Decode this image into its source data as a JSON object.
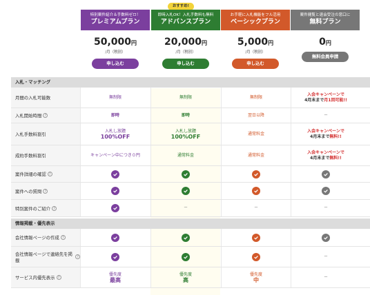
{
  "colors": {
    "premium": "#7b3f9e",
    "advance": "#2e7d32",
    "basic": "#d2592a",
    "free": "#777777",
    "highlight_badge": "#f2d33a"
  },
  "badge": "おすすめ!",
  "plans": [
    {
      "tag": "特別案件紹介＆手数料ゼロ！",
      "name": "プレミアムプラン",
      "amount": "50,000",
      "yen": "円",
      "per": "/月（税別）",
      "button": "申し込む"
    },
    {
      "tag": "即時入札OK！入札手数料も無料",
      "name": "アドバンスプラン",
      "amount": "20,000",
      "yen": "円",
      "per": "/月（税別）",
      "button": "申し込む"
    },
    {
      "tag": "お手軽に入札機能をフル活用",
      "name": "ベーシックプラン",
      "amount": "5,000",
      "yen": "円",
      "per": "/月（税別）",
      "button": "申し込む"
    },
    {
      "tag": "案件閲覧と退会受注の窓口に",
      "name": "無料プラン",
      "amount": "0",
      "yen": "円",
      "per": "",
      "button": "無料会員申請"
    }
  ],
  "sections": {
    "bidding": "入札・マッチング",
    "info": "情報掲載・優先表示"
  },
  "rows": {
    "monthly_bids": {
      "label": "月間の入札可能数",
      "c1": "無制限",
      "c2": "無制限",
      "c3": "無制限",
      "c4a": "入会キャンペーンで",
      "c4b": "4月末まで",
      "c4c": "月1回可能!!"
    },
    "bid_start": {
      "label": "入札開始時間",
      "c1": "即時",
      "c2": "即時",
      "c3": "翌日以降",
      "c4": "－"
    },
    "fee_discount": {
      "label": "入札手数料割引",
      "c1a": "入札し放題",
      "c1b": "100%OFF",
      "c2a": "入札し放題",
      "c2b": "100%OFF",
      "c3": "通常料金",
      "c4a": "入会キャンペーンで",
      "c4b": "4月末まで",
      "c4c": "無料!!"
    },
    "contract_fee": {
      "label": "成約手数料割引",
      "c1": "キャンペーン中につき０円",
      "c2": "通常料金",
      "c3": "通常料金",
      "c4a": "入会キャンペーンで",
      "c4b": "4月末まで",
      "c4c": "無料!!"
    },
    "case_detail": {
      "label": "案件詳細の確認"
    },
    "case_question": {
      "label": "案件への質問"
    },
    "special_case": {
      "label": "特別案件のご紹介",
      "c2": "－",
      "c3": "－",
      "c4": "－"
    },
    "company_page": {
      "label": "会社情報ページの作成"
    },
    "contact_info": {
      "label": "会社情報ページで連絡先を掲載",
      "c4": "－"
    },
    "priority": {
      "label": "サービス内優先表示",
      "c1a": "優先度",
      "c1b": "最高",
      "c2a": "優先度",
      "c2b": "高",
      "c3a": "優先度",
      "c3b": "中",
      "c4": "－"
    }
  }
}
